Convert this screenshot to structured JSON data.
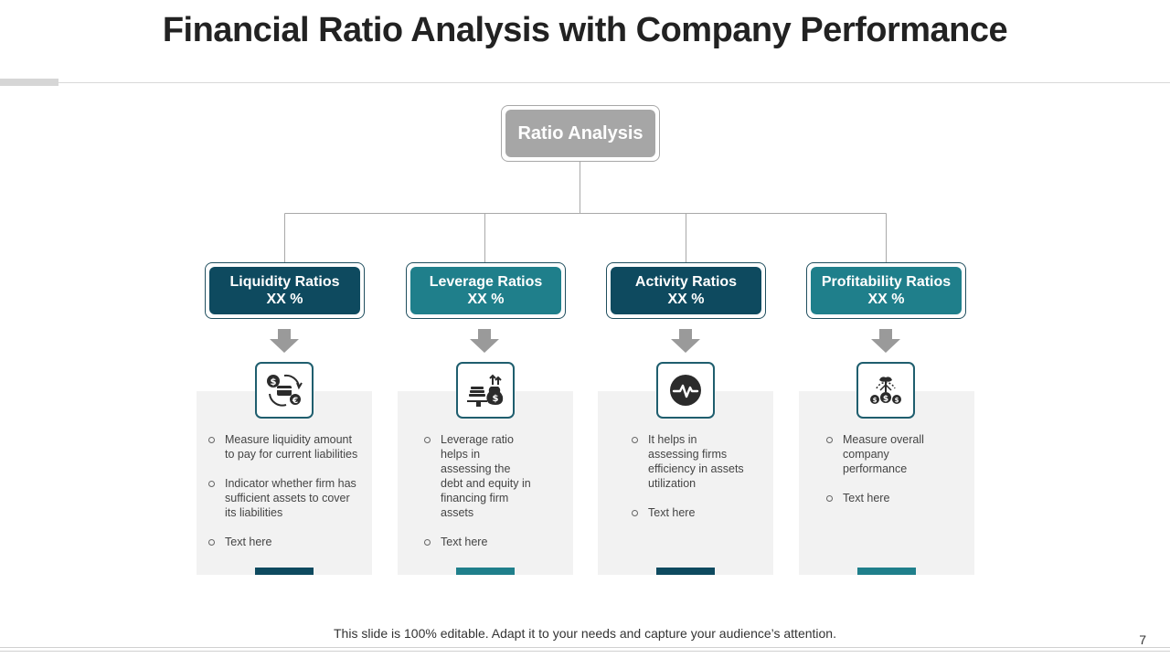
{
  "slide": {
    "title": "Financial Ratio Analysis with Company Performance",
    "footer": "This slide is 100% editable. Adapt it to your needs and capture your audience’s attention.",
    "page_number": "7"
  },
  "diagram": {
    "root": {
      "label": "Ratio Analysis"
    },
    "colors": {
      "dark": "#0e4a5f",
      "teal": "#1f7f8b",
      "root": "#a6a6a6",
      "arrow": "#9a9a9a",
      "panel": "#f2f2f2"
    },
    "categories": [
      {
        "title": "Liquidity Ratios",
        "value": "XX %",
        "icon": "currency-exchange-icon",
        "bullets": [
          "Measure liquidity amount to pay for current liabilities",
          "Indicator whether firm has sufficient assets to cover its liabilities",
          "Text here"
        ]
      },
      {
        "title": "Leverage Ratios",
        "value": "XX %",
        "icon": "money-bag-coins-icon",
        "bullets": [
          "Leverage ratio helps in assessing the debt and equity in financing firm assets",
          "Text here"
        ]
      },
      {
        "title": "Activity Ratios",
        "value": "XX %",
        "icon": "pulse-icon",
        "bullets": [
          "It helps in assessing firms efficiency in assets utilization",
          "Text here"
        ]
      },
      {
        "title": "Profitability Ratios",
        "value": "XX %",
        "icon": "money-growth-icon",
        "bullets": [
          "Measure overall company performance",
          "Text here"
        ]
      }
    ]
  }
}
